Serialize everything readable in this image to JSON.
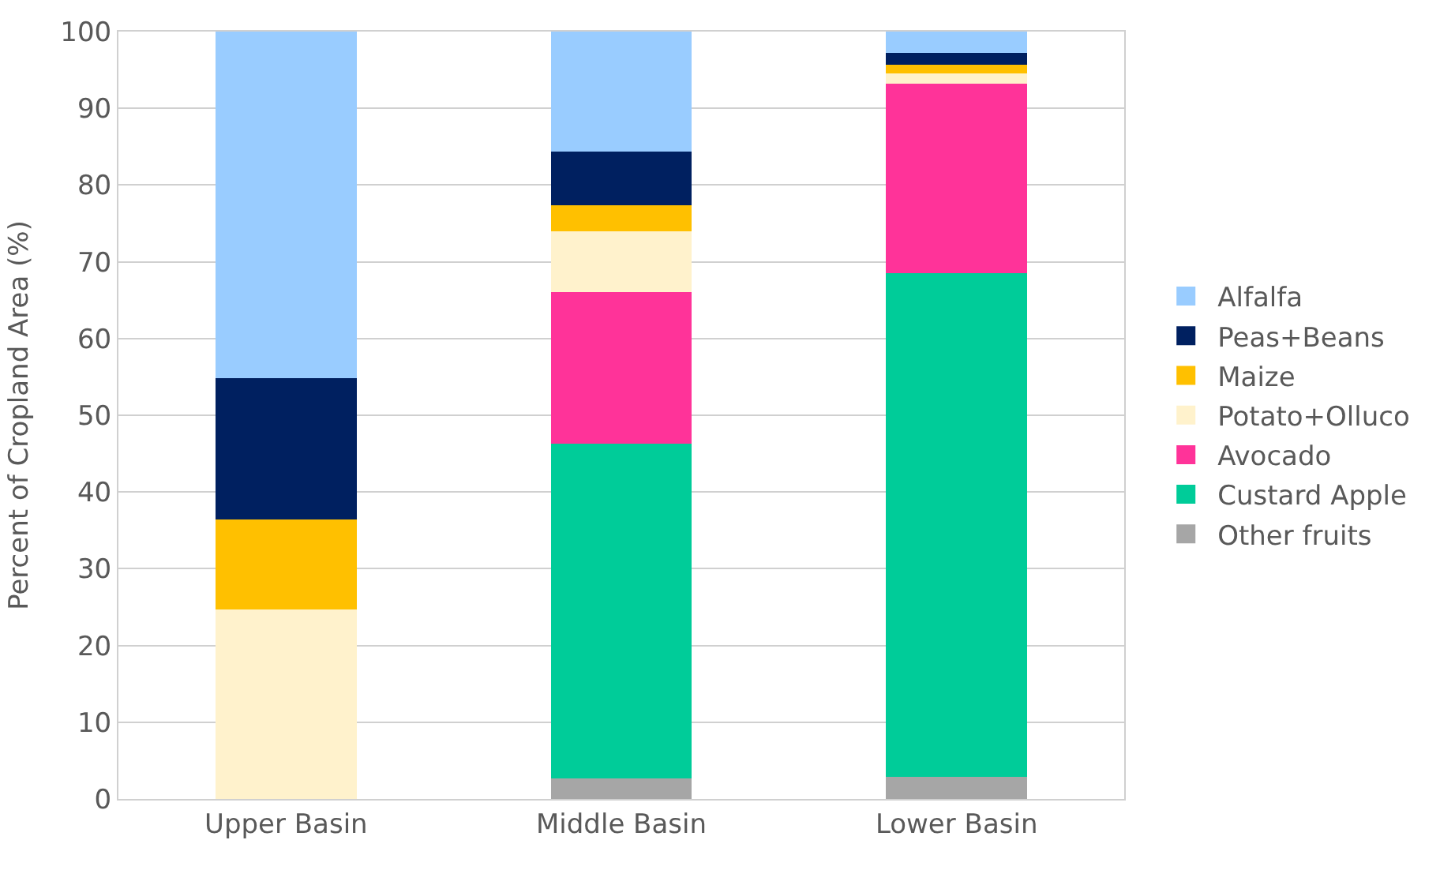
{
  "chart_data": {
    "type": "bar",
    "stacked": true,
    "ylabel": "Percent of Cropland Area (%)",
    "categories": [
      "Upper Basin",
      "Middle Basin",
      "Lower Basin"
    ],
    "series": [
      {
        "name": "Other fruits",
        "color": "#a6a6a6",
        "values": [
          0,
          2.7,
          2.9
        ]
      },
      {
        "name": "Custard Apple",
        "color": "#00cc99",
        "values": [
          0,
          43.6,
          65.6
        ]
      },
      {
        "name": "Avocado",
        "color": "#ff3399",
        "values": [
          0,
          19.7,
          24.7
        ]
      },
      {
        "name": "Potato+Olluco",
        "color": "#fff2cc",
        "values": [
          24.7,
          8.0,
          1.3
        ]
      },
      {
        "name": "Maize",
        "color": "#ffc000",
        "values": [
          11.7,
          3.4,
          1.2
        ]
      },
      {
        "name": "Peas+Beans",
        "color": "#002060",
        "values": [
          18.4,
          7.0,
          1.5
        ]
      },
      {
        "name": "Alfalfa",
        "color": "#99ccff",
        "values": [
          45.2,
          15.6,
          2.8
        ]
      }
    ],
    "ylim": [
      0,
      100
    ],
    "yticks": [
      0,
      10,
      20,
      30,
      40,
      50,
      60,
      70,
      80,
      90,
      100
    ],
    "grid": "y",
    "legend": "right"
  }
}
